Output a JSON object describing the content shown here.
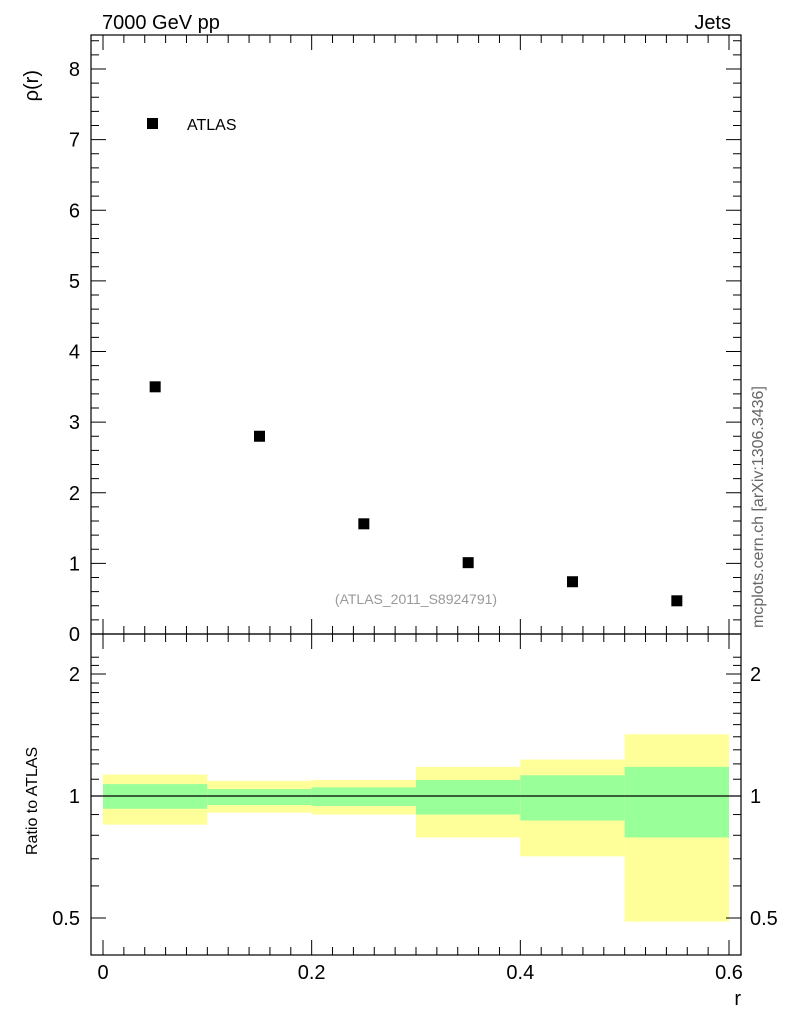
{
  "header": {
    "left": "7000 GeV pp",
    "right": "Jets",
    "side_note": "mcplots.cern.ch [arXiv:1306.3436]"
  },
  "chart_data": [
    {
      "type": "scatter",
      "ylabel": "ρ(r)",
      "xlim": [
        0,
        0.6
      ],
      "ylim": [
        0,
        8.5
      ],
      "y_ticks": [
        0,
        1,
        2,
        3,
        4,
        5,
        6,
        7,
        8
      ],
      "legend": {
        "placement": "top-left",
        "entries": [
          "ATLAS"
        ]
      },
      "annotation": "(ATLAS_2011_S8924791)",
      "series": [
        {
          "name": "ATLAS",
          "marker": "square",
          "color": "#000000",
          "x": [
            0.05,
            0.15,
            0.25,
            0.35,
            0.45,
            0.55
          ],
          "y": [
            3.5,
            2.8,
            1.56,
            1.01,
            0.74,
            0.47
          ]
        }
      ]
    },
    {
      "type": "area",
      "xlabel": "r",
      "ylabel": "Ratio to ATLAS",
      "xlim": [
        0,
        0.6
      ],
      "ylim": [
        0.35,
        2.25
      ],
      "x_ticks": [
        "0",
        "0.2",
        "0.4",
        "0.6"
      ],
      "x_tick_values": [
        0,
        0.2,
        0.4,
        0.6
      ],
      "y_ticks": [
        "0.5",
        "1",
        "2"
      ],
      "y_tick_values": [
        0.5,
        1,
        2
      ],
      "reference_line": 1,
      "bins": [
        {
          "x_low": 0.0,
          "x_high": 0.1,
          "inner": [
            0.93,
            1.07
          ],
          "outer": [
            0.85,
            1.13
          ]
        },
        {
          "x_low": 0.1,
          "x_high": 0.2,
          "inner": [
            0.95,
            1.04
          ],
          "outer": [
            0.91,
            1.09
          ]
        },
        {
          "x_low": 0.2,
          "x_high": 0.3,
          "inner": [
            0.945,
            1.05
          ],
          "outer": [
            0.9,
            1.095
          ]
        },
        {
          "x_low": 0.3,
          "x_high": 0.4,
          "inner": [
            0.9,
            1.095
          ],
          "outer": [
            0.79,
            1.18
          ]
        },
        {
          "x_low": 0.4,
          "x_high": 0.5,
          "inner": [
            0.87,
            1.125
          ],
          "outer": [
            0.71,
            1.23
          ]
        },
        {
          "x_low": 0.5,
          "x_high": 0.6,
          "inner": [
            0.79,
            1.18
          ],
          "outer": [
            0.49,
            1.42
          ]
        }
      ],
      "colors": {
        "inner": "#99ff99",
        "outer": "#ffff99",
        "line": "#000000"
      }
    }
  ]
}
